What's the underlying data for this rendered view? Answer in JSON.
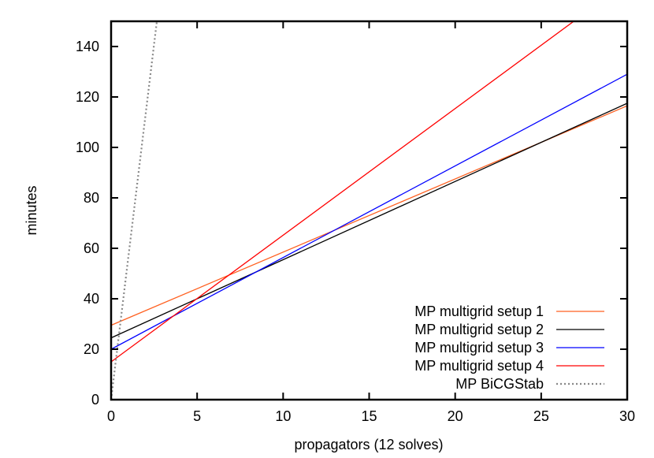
{
  "chart_data": {
    "type": "line",
    "title": "",
    "xlabel": "propagators (12 solves)",
    "ylabel": "minutes",
    "xlim": [
      0,
      30
    ],
    "ylim": [
      0,
      150
    ],
    "xticks": [
      0,
      5,
      10,
      15,
      20,
      25,
      30
    ],
    "yticks": [
      0,
      20,
      40,
      60,
      80,
      100,
      120,
      140
    ],
    "grid": false,
    "legend_position": "lower right",
    "series": [
      {
        "name": "MP multigrid setup 1",
        "color": "#ff6020",
        "dash": "solid",
        "x": [
          0,
          30
        ],
        "y": [
          29.5,
          116.5
        ]
      },
      {
        "name": "MP multigrid setup 2",
        "color": "#000000",
        "dash": "solid",
        "x": [
          0,
          30
        ],
        "y": [
          24.5,
          117.5
        ]
      },
      {
        "name": "MP multigrid setup 3",
        "color": "#0000ff",
        "dash": "solid",
        "x": [
          0,
          30
        ],
        "y": [
          20.0,
          129.0
        ]
      },
      {
        "name": "MP multigrid setup 4",
        "color": "#ff0000",
        "dash": "solid",
        "x": [
          0,
          30
        ],
        "y": [
          15.0,
          165.6
        ]
      },
      {
        "name": "MP BiCGStab",
        "color": "#888888",
        "dash": "dotted",
        "x": [
          0,
          30
        ],
        "y": [
          0,
          1692
        ]
      }
    ]
  }
}
